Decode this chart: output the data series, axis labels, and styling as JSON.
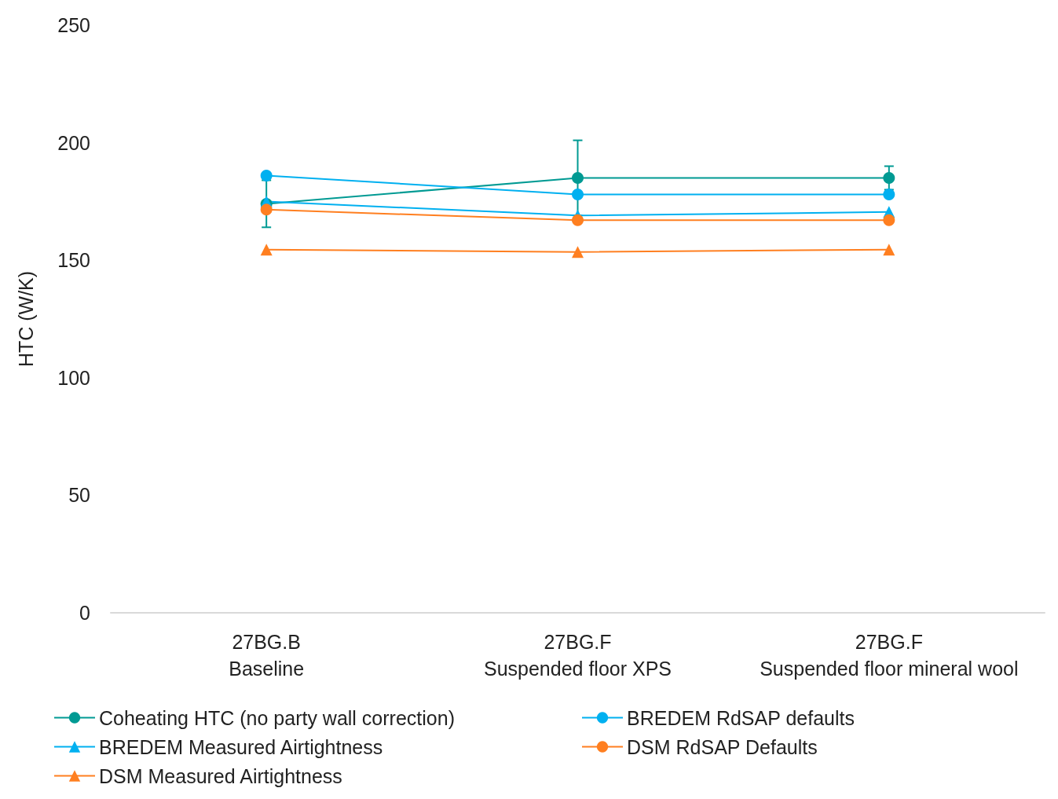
{
  "chart_data": {
    "type": "line",
    "ylabel": "HTC (W/K)",
    "categories": [
      "27BG.B\nBaseline",
      "27BG.F\nSuspended floor XPS",
      "27BG.F\nSuspended floor mineral wool"
    ],
    "series": [
      {
        "name": "Coheating HTC (no party wall correction)",
        "color": "#009a93",
        "marker": "circle",
        "values": [
          174,
          185,
          185
        ],
        "errors": [
          10,
          16,
          5
        ]
      },
      {
        "name": "BREDEM RdSAP defaults",
        "color": "#00b0f0",
        "marker": "circle",
        "values": [
          186,
          178,
          178
        ]
      },
      {
        "name": "BREDEM Measured Airtightness",
        "color": "#00b0f0",
        "marker": "triangle",
        "values": [
          175,
          169,
          170.5
        ]
      },
      {
        "name": "DSM RdSAP Defaults",
        "color": "#ff7f20",
        "marker": "circle",
        "values": [
          171.5,
          167,
          167
        ]
      },
      {
        "name": "DSM Measured Airtightness",
        "color": "#ff7f20",
        "marker": "triangle",
        "values": [
          154.5,
          153.5,
          154.5
        ]
      }
    ],
    "ylim": [
      0,
      250
    ],
    "yticks": [
      0,
      50,
      100,
      150,
      200,
      250
    ],
    "grid": false,
    "legend": "bottom"
  }
}
